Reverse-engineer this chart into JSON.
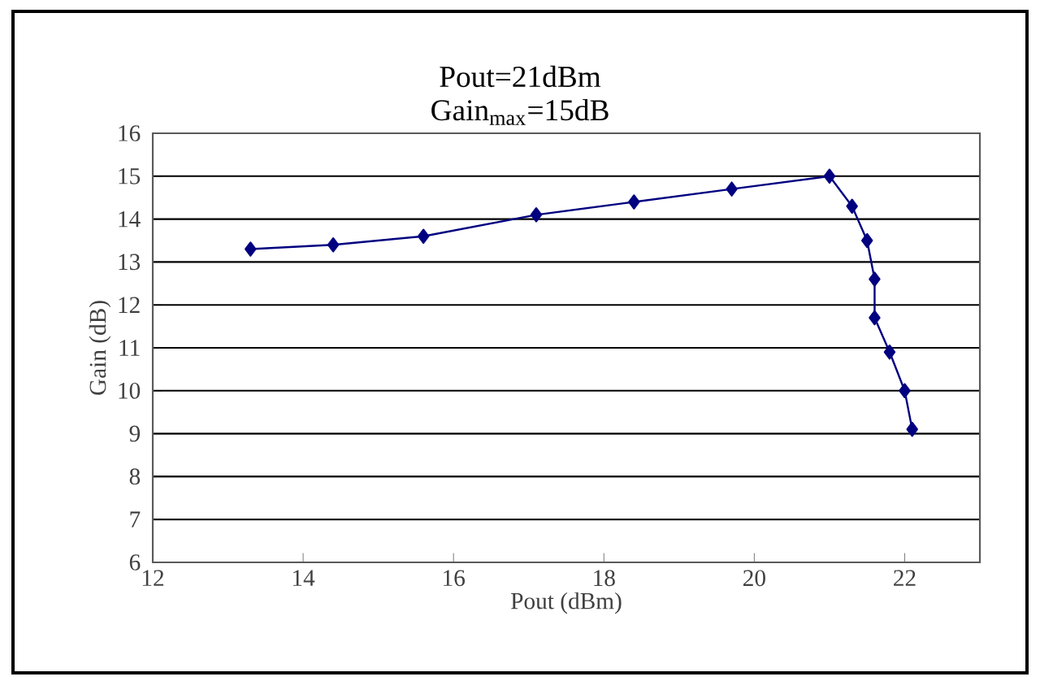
{
  "chart_data": {
    "type": "line",
    "title": "Pout=21dBm",
    "subtitle": "Gain$_{max}$=15dB",
    "xlabel": "Pout (dBm)",
    "ylabel": "Gain (dB)",
    "x": [
      13.3,
      14.4,
      15.6,
      17.1,
      18.4,
      19.7,
      21.0,
      21.3,
      21.5,
      21.6,
      21.6,
      21.8,
      22.0,
      22.1
    ],
    "values": [
      13.3,
      13.4,
      13.6,
      14.1,
      14.4,
      14.7,
      15.0,
      14.3,
      13.5,
      12.6,
      11.7,
      10.9,
      10.0,
      9.1
    ],
    "color": "#000080",
    "marker": "diamond",
    "line_style": "solid",
    "grid": "y",
    "xlim": [
      12,
      23
    ],
    "ylim": [
      6,
      16
    ],
    "xticks": [
      12,
      14,
      16,
      18,
      20,
      22
    ],
    "yticks": [
      6,
      7,
      8,
      9,
      10,
      11,
      12,
      13,
      14,
      15,
      16
    ]
  }
}
